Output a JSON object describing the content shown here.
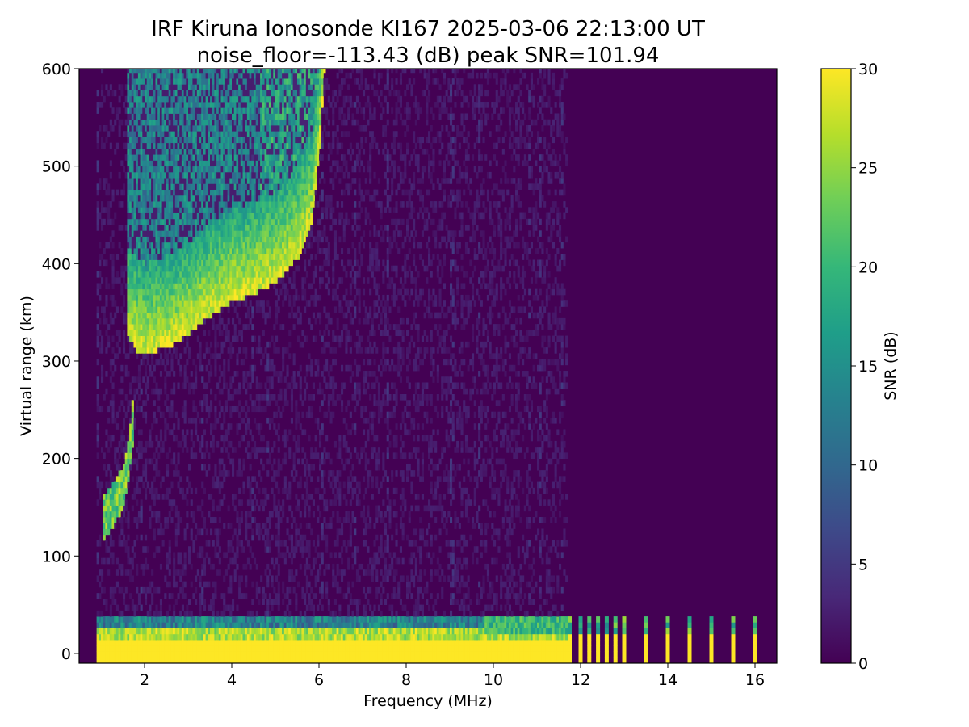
{
  "chart_data": {
    "type": "heatmap",
    "title_line1": "IRF Kiruna Ionosonde KI167 2025-03-06 22:13:00  UT",
    "title_line2": "noise_floor=-113.43 (dB) peak SNR=101.94",
    "xlabel": "Frequency (MHz)",
    "ylabel": "Virtual range (km)",
    "colorbar_label": "SNR (dB)",
    "colormap": "viridis",
    "colormap_stops": [
      "#440154",
      "#482878",
      "#3e4989",
      "#31688e",
      "#26828e",
      "#1f9e89",
      "#35b779",
      "#6ece58",
      "#b5de2b",
      "#fde725"
    ],
    "xlim": [
      0.5,
      16.5
    ],
    "ylim": [
      -10,
      600
    ],
    "clim": [
      0,
      30
    ],
    "x_ticks": [
      2,
      4,
      6,
      8,
      10,
      12,
      14,
      16
    ],
    "y_ticks": [
      0,
      100,
      200,
      300,
      400,
      500,
      600
    ],
    "colorbar_ticks": [
      0,
      5,
      10,
      15,
      20,
      25,
      30
    ],
    "x_tick_labels": [
      "2",
      "4",
      "6",
      "8",
      "10",
      "12",
      "14",
      "16"
    ],
    "y_tick_labels": [
      "0",
      "100",
      "200",
      "300",
      "400",
      "500",
      "600"
    ],
    "colorbar_tick_labels": [
      "0",
      "5",
      "10",
      "15",
      "20",
      "25",
      "30"
    ],
    "freq_start_mhz": 0.9,
    "continuous_sweep_end_mhz": 11.7,
    "discrete_frequencies_mhz": [
      11.75,
      12.0,
      12.2,
      12.4,
      12.6,
      12.8,
      13.0,
      13.5,
      14.0,
      14.5,
      15.0,
      15.5,
      16.0
    ],
    "ground_clutter_km": [
      -10,
      35
    ],
    "f_layer_trace": [
      {
        "freq_mhz": 1.6,
        "range_km": 325
      },
      {
        "freq_mhz": 1.8,
        "range_km": 312
      },
      {
        "freq_mhz": 2.0,
        "range_km": 308
      },
      {
        "freq_mhz": 2.5,
        "range_km": 315
      },
      {
        "freq_mhz": 3.0,
        "range_km": 330
      },
      {
        "freq_mhz": 3.5,
        "range_km": 348
      },
      {
        "freq_mhz": 4.0,
        "range_km": 362
      },
      {
        "freq_mhz": 4.5,
        "range_km": 370
      },
      {
        "freq_mhz": 5.0,
        "range_km": 382
      },
      {
        "freq_mhz": 5.5,
        "range_km": 408
      },
      {
        "freq_mhz": 5.8,
        "range_km": 440
      },
      {
        "freq_mhz": 6.0,
        "range_km": 520
      },
      {
        "freq_mhz": 6.1,
        "range_km": 600
      }
    ],
    "lower_trace": [
      {
        "freq_mhz": 1.05,
        "range_km": 118
      },
      {
        "freq_mhz": 1.3,
        "range_km": 135
      },
      {
        "freq_mhz": 1.5,
        "range_km": 150
      },
      {
        "freq_mhz": 1.6,
        "range_km": 175
      },
      {
        "freq_mhz": 1.7,
        "range_km": 215
      },
      {
        "freq_mhz": 1.75,
        "range_km": 255
      }
    ]
  }
}
